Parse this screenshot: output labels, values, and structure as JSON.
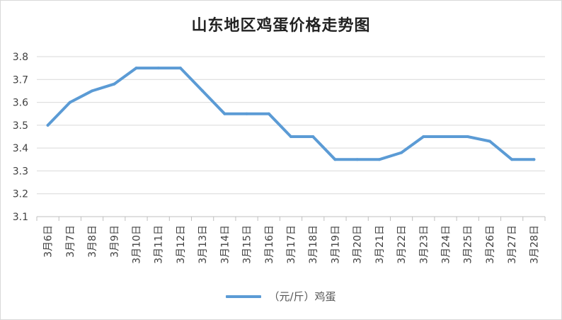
{
  "chart_data": {
    "type": "line",
    "title": "山东地区鸡蛋价格走势图",
    "categories": [
      "3月6日",
      "3月7日",
      "3月8日",
      "3月9日",
      "3月10日",
      "3月11日",
      "3月12日",
      "3月13日",
      "3月14日",
      "3月15日",
      "3月16日",
      "3月17日",
      "3月18日",
      "3月19日",
      "3月20日",
      "3月21日",
      "3月22日",
      "3月23日",
      "3月24日",
      "3月25日",
      "3月26日",
      "3月27日",
      "3月28日"
    ],
    "series": [
      {
        "name": "（元/斤）鸡蛋",
        "values": [
          3.5,
          3.6,
          3.65,
          3.68,
          3.75,
          3.75,
          3.75,
          3.65,
          3.55,
          3.55,
          3.55,
          3.45,
          3.45,
          3.35,
          3.35,
          3.35,
          3.38,
          3.45,
          3.45,
          3.45,
          3.43,
          3.35,
          3.35
        ]
      }
    ],
    "ylim": [
      3.1,
      3.8
    ],
    "yticks": [
      "3.1",
      "3.2",
      "3.3",
      "3.4",
      "3.5",
      "3.6",
      "3.7",
      "3.8"
    ],
    "grid": true,
    "legend": "bottom",
    "colors": {
      "line": "#5b9bd5",
      "grid": "#d9d9d9",
      "axis": "#bfbfbf"
    }
  }
}
